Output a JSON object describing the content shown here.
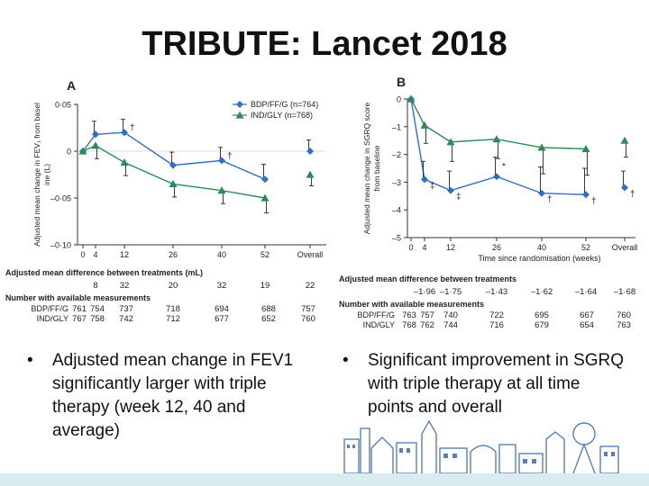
{
  "slide": {
    "title": "TRIBUTE: Lancet 2018",
    "bullets_left": [
      "Adjusted mean change in FEV1 significantly larger with triple therapy (week 12, 40 and average)"
    ],
    "bullets_right": [
      "Significant improvement in SGRQ with triple therapy at all time points and overall"
    ],
    "bullet_glyph": "•"
  },
  "colors": {
    "triple": "#2f6fc4",
    "dual": "#2e8b57",
    "axis": "#333333",
    "error": "#222222"
  },
  "chart_data": [
    {
      "panel": "A",
      "type": "line",
      "ylabel": "Adjusted mean change in FEV₁ from baseline (L)",
      "xlabel": "",
      "ylim": [
        -0.1,
        0.05
      ],
      "yticks": [
        0.05,
        0,
        -0.05,
        -0.1
      ],
      "ytick_labels": [
        "0·05",
        "0",
        "–0·05",
        "–0·10"
      ],
      "x_categories": [
        "0",
        "4",
        "12",
        "26",
        "40",
        "52",
        "Overall"
      ],
      "series": [
        {
          "name": "BDP/FF/G (n=764)",
          "marker": "diamond",
          "values": [
            0,
            0.018,
            0.02,
            -0.015,
            -0.01,
            -0.03,
            0.0
          ],
          "err": [
            0,
            0.014,
            0.014,
            0.014,
            0.014,
            0.016,
            0.012
          ]
        },
        {
          "name": "IND/GLY (n=768)",
          "marker": "triangle",
          "values": [
            0,
            0.006,
            -0.012,
            -0.035,
            -0.042,
            -0.05,
            -0.025
          ],
          "err": [
            0,
            0.014,
            0.014,
            0.014,
            0.014,
            0.016,
            0.012
          ]
        }
      ],
      "annotations": [
        {
          "x": "12",
          "text": "†"
        },
        {
          "x": "40",
          "text": "†"
        }
      ],
      "legend": "top-right",
      "diff_label": "Adjusted mean difference between treatments (mL)",
      "diff_values": [
        "8",
        "32",
        "20",
        "32",
        "19",
        "22"
      ],
      "counts_label": "Number with available measurements",
      "counts": [
        {
          "label": "BDP/FF/G",
          "values": [
            "761",
            "754",
            "737",
            "718",
            "694",
            "688",
            "757"
          ]
        },
        {
          "label": "IND/GLY",
          "values": [
            "767",
            "758",
            "742",
            "712",
            "677",
            "652",
            "760"
          ]
        }
      ]
    },
    {
      "panel": "B",
      "type": "line",
      "ylabel": "Adjusted mean change in SGRQ score from baseline",
      "xlabel": "Time since randomisation (weeks)",
      "ylim": [
        -5,
        0
      ],
      "yticks": [
        0,
        -1,
        -2,
        -3,
        -4,
        -5
      ],
      "ytick_labels": [
        "0",
        "–1",
        "–2",
        "–3",
        "–4",
        "–5"
      ],
      "x_categories": [
        "0",
        "4",
        "12",
        "26",
        "40",
        "52",
        "Overall"
      ],
      "series": [
        {
          "name": "BDP/FF/G",
          "marker": "diamond",
          "values": [
            0,
            -2.9,
            -3.3,
            -2.8,
            -3.4,
            -3.45,
            -3.2
          ],
          "err": [
            0,
            0.65,
            0.7,
            0.7,
            0.95,
            0.95,
            0.6
          ]
        },
        {
          "name": "IND/GLY",
          "marker": "triangle",
          "values": [
            0,
            -0.95,
            -1.55,
            -1.45,
            -1.75,
            -1.8,
            -1.5
          ],
          "err": [
            0,
            0.65,
            0.7,
            0.7,
            0.95,
            0.95,
            0.6
          ]
        }
      ],
      "annotations": [
        {
          "x": "4",
          "text": "‡"
        },
        {
          "x": "12",
          "text": "‡"
        },
        {
          "x": "26",
          "text": "*"
        },
        {
          "x": "40",
          "text": "†"
        },
        {
          "x": "52",
          "text": "†"
        },
        {
          "x": "Overall",
          "text": "†"
        }
      ],
      "diff_label": "Adjusted mean difference between treatments",
      "diff_values": [
        "–1·96",
        "–1·75",
        "–1·43",
        "–1·62",
        "–1·64",
        "–1·68"
      ],
      "counts_label": "Number with available measurements",
      "counts": [
        {
          "label": "BDP/FF/G",
          "values": [
            "763",
            "757",
            "740",
            "722",
            "695",
            "667",
            "760"
          ]
        },
        {
          "label": "IND/GLY",
          "values": [
            "768",
            "762",
            "744",
            "716",
            "679",
            "654",
            "763"
          ]
        }
      ]
    }
  ]
}
